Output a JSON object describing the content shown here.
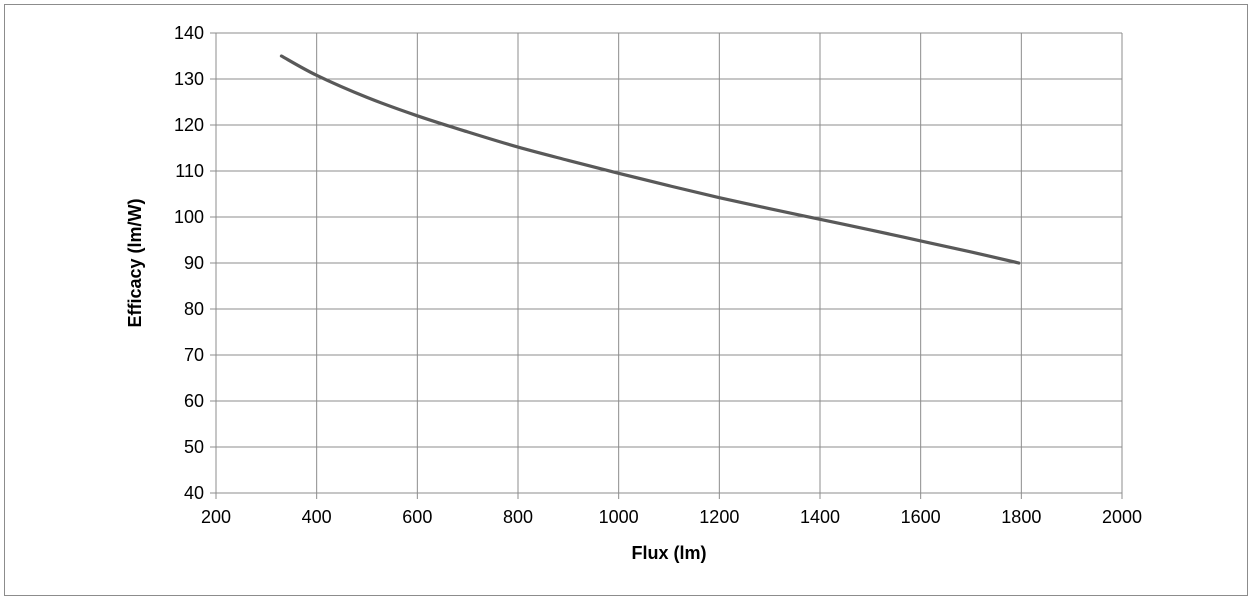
{
  "chart_data": {
    "type": "line",
    "title": "",
    "xlabel": "Flux (lm)",
    "ylabel": "Efficacy (lm/W)",
    "xlim": [
      200,
      2000
    ],
    "ylim": [
      40,
      140
    ],
    "x_ticks": [
      200,
      400,
      600,
      800,
      1000,
      1200,
      1400,
      1600,
      1800,
      2000
    ],
    "y_ticks": [
      40,
      50,
      60,
      70,
      80,
      90,
      100,
      110,
      120,
      130,
      140
    ],
    "grid": true,
    "legend": "none",
    "series": [
      {
        "color": "#595959",
        "x": [
          330,
          400,
          500,
          600,
          700,
          800,
          900,
          1000,
          1100,
          1200,
          1300,
          1400,
          1500,
          1600,
          1700,
          1795
        ],
        "y": [
          135,
          130.8,
          126,
          122,
          118.5,
          115.2,
          112.3,
          109.5,
          106.8,
          104.2,
          101.8,
          99.5,
          97.2,
          94.8,
          92.4,
          90
        ]
      }
    ]
  }
}
